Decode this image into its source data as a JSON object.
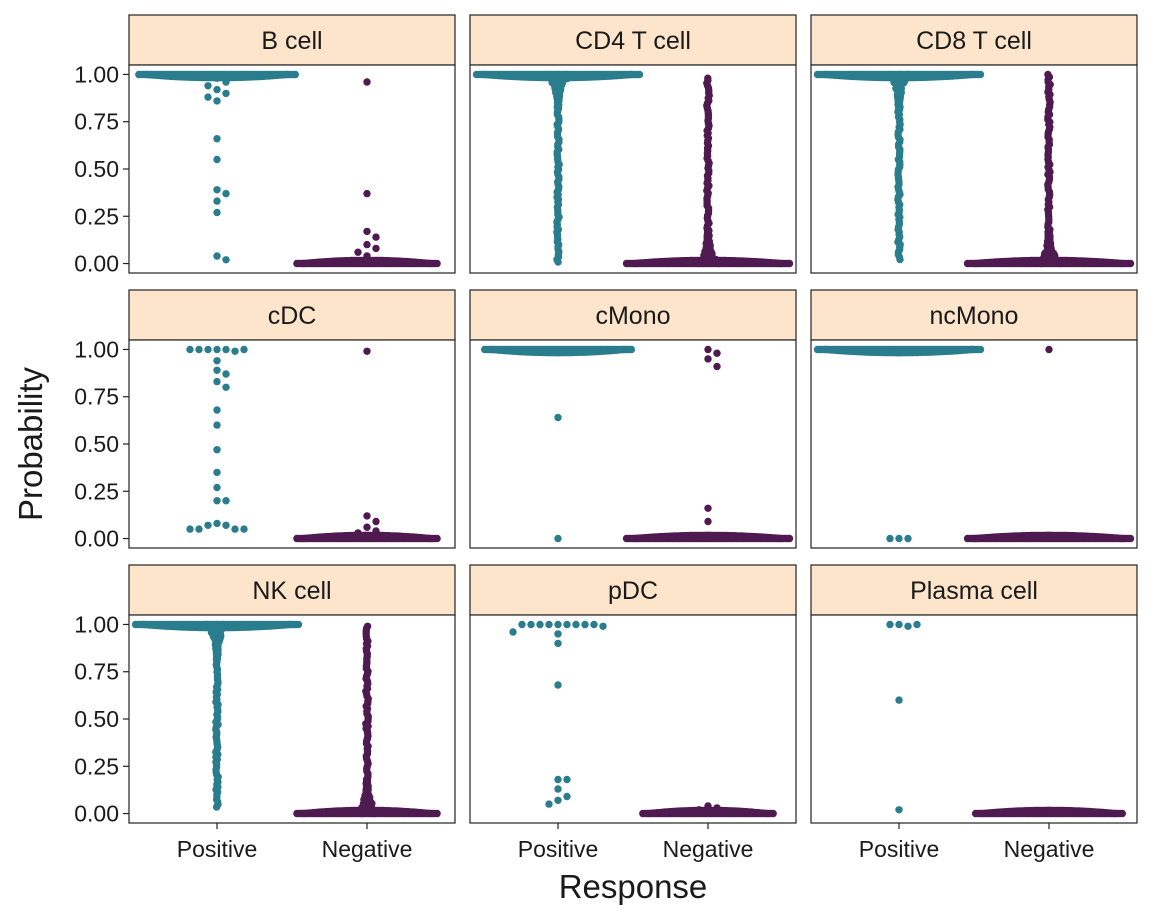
{
  "chart_data": {
    "type": "scatter",
    "xlabel": "Response",
    "ylabel": "Probability",
    "categories": [
      "Positive",
      "Negative"
    ],
    "ylim": [
      -0.05,
      1.05
    ],
    "yticks": [
      "0.00",
      "0.25",
      "0.50",
      "0.75",
      "1.00"
    ],
    "grid": false,
    "legend": "none",
    "colors": {
      "Positive": "#2a7d8c",
      "Negative": "#4e1a50",
      "strip_fill": "#fde5cc",
      "frame": "#222222"
    },
    "panels": [
      {
        "label": "B cell",
        "series": [
          {
            "category": "Positive",
            "dense_top": {
              "y": 1.0,
              "spread": 0.48
            },
            "points": [
              0.98,
              0.96,
              0.94,
              0.92,
              0.9,
              0.88,
              0.86,
              0.66,
              0.55,
              0.39,
              0.37,
              0.33,
              0.27,
              0.04,
              0.02
            ]
          },
          {
            "category": "Negative",
            "dense_bottom": {
              "y": 0.0,
              "spread": 0.43
            },
            "points": [
              0.96,
              0.37,
              0.17,
              0.14,
              0.1,
              0.08,
              0.06,
              0.04
            ]
          }
        ]
      },
      {
        "label": "CD4 T cell",
        "series": [
          {
            "category": "Positive",
            "dense_top": {
              "y": 1.0,
              "spread": 0.5
            },
            "column": [
              0.0,
              1.0
            ]
          },
          {
            "category": "Negative",
            "dense_bottom": {
              "y": 0.0,
              "spread": 0.5
            },
            "column": [
              0.0,
              0.98
            ]
          }
        ]
      },
      {
        "label": "CD8 T cell",
        "series": [
          {
            "category": "Positive",
            "dense_top": {
              "y": 1.0,
              "spread": 0.5
            },
            "column": [
              0.01,
              1.0
            ]
          },
          {
            "category": "Negative",
            "dense_bottom": {
              "y": 0.0,
              "spread": 0.5
            },
            "column": [
              0.0,
              1.0
            ]
          }
        ]
      },
      {
        "label": "cDC",
        "series": [
          {
            "category": "Positive",
            "points": [
              1.0,
              1.0,
              1.0,
              0.99,
              1.0,
              1.0,
              1.0,
              0.94,
              0.89,
              0.83,
              0.87,
              0.8,
              0.68,
              0.6,
              0.47,
              0.35,
              0.27,
              0.2,
              0.2,
              0.08,
              0.07,
              0.07,
              0.05,
              0.05,
              0.05,
              0.05
            ]
          },
          {
            "category": "Negative",
            "dense_bottom": {
              "y": 0.0,
              "spread": 0.43
            },
            "points": [
              0.99,
              0.12,
              0.09,
              0.06,
              0.04,
              0.03
            ]
          }
        ]
      },
      {
        "label": "cMono",
        "series": [
          {
            "category": "Positive",
            "dense_top": {
              "y": 1.0,
              "spread": 0.45
            },
            "points": [
              0.64,
              0.0
            ]
          },
          {
            "category": "Negative",
            "dense_bottom": {
              "y": 0.0,
              "spread": 0.5
            },
            "points": [
              1.0,
              0.98,
              0.95,
              0.91,
              0.16,
              0.09
            ]
          }
        ]
      },
      {
        "label": "ncMono",
        "series": [
          {
            "category": "Positive",
            "dense_top": {
              "y": 1.0,
              "spread": 0.5
            },
            "points": [
              0.0,
              0.0,
              0.0
            ]
          },
          {
            "category": "Negative",
            "dense_bottom": {
              "y": 0.0,
              "spread": 0.5
            },
            "points": [
              1.0
            ]
          }
        ]
      },
      {
        "label": "NK cell",
        "series": [
          {
            "category": "Positive",
            "dense_top": {
              "y": 1.0,
              "spread": 0.5
            },
            "column": [
              0.03,
              1.0
            ]
          },
          {
            "category": "Negative",
            "dense_bottom": {
              "y": 0.0,
              "spread": 0.43
            },
            "column": [
              0.0,
              0.99
            ]
          }
        ]
      },
      {
        "label": "pDC",
        "series": [
          {
            "category": "Positive",
            "points": [
              1.0,
              1.0,
              1.0,
              1.0,
              1.0,
              1.0,
              1.0,
              1.0,
              1.0,
              0.99,
              0.96,
              0.95,
              0.9,
              0.68,
              0.18,
              0.18,
              0.13,
              0.09,
              0.07,
              0.05
            ]
          },
          {
            "category": "Negative",
            "dense_bottom": {
              "y": 0.0,
              "spread": 0.4
            },
            "points": [
              0.04,
              0.03,
              0.02
            ]
          }
        ]
      },
      {
        "label": "Plasma cell",
        "series": [
          {
            "category": "Positive",
            "points": [
              1.0,
              0.99,
              1.0,
              1.0,
              0.6,
              0.02
            ]
          },
          {
            "category": "Negative",
            "dense_bottom": {
              "y": 0.0,
              "spread": 0.45
            },
            "points": [
              0.01
            ]
          }
        ]
      }
    ]
  }
}
